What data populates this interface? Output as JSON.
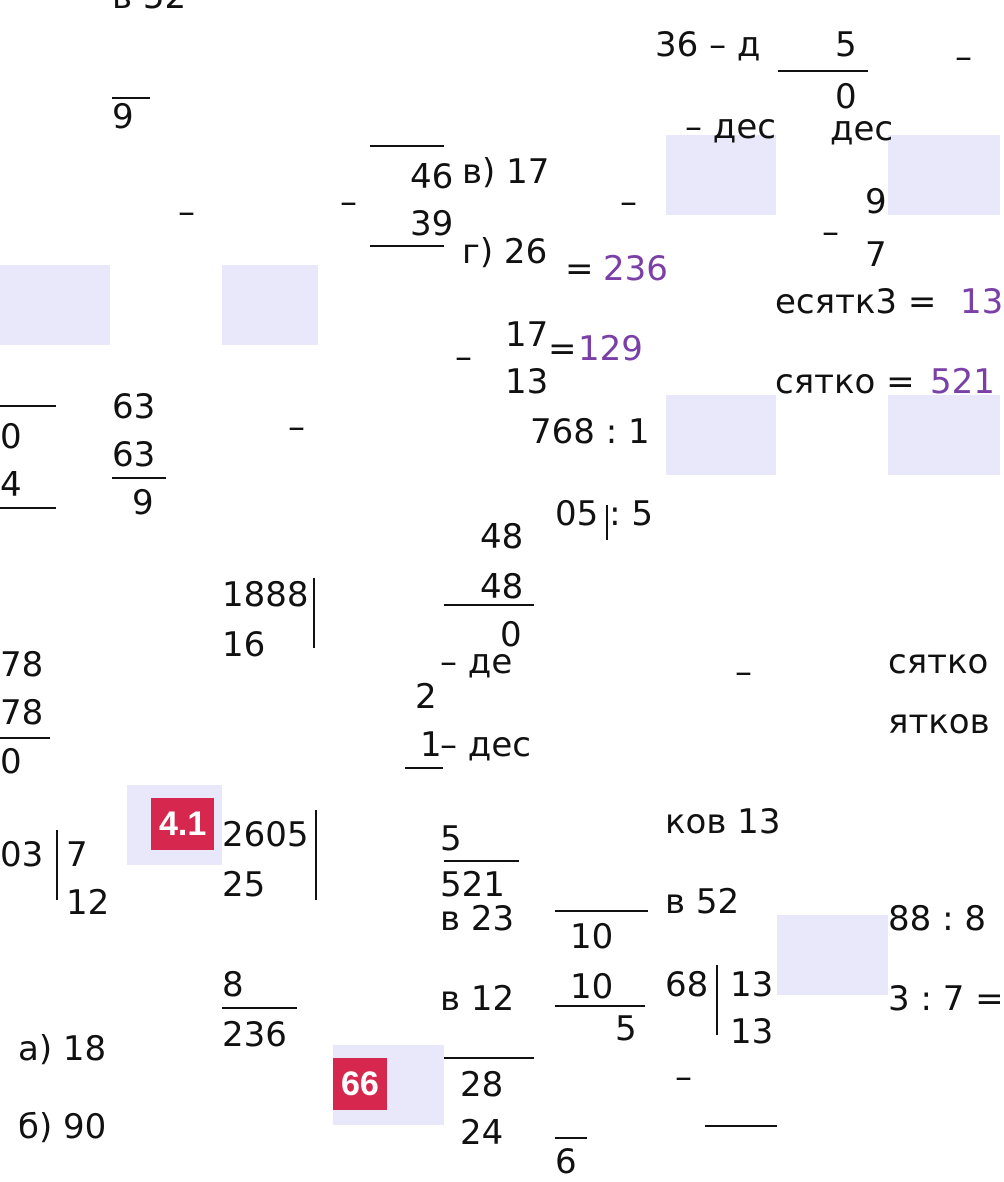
{
  "fragments": [
    {
      "text": "в 52"
    },
    {
      "text": "9"
    },
    {
      "text": "46"
    },
    {
      "text": "в) 17"
    },
    {
      "text": "39"
    },
    {
      "text": "г) 26"
    },
    {
      "text": "–"
    },
    {
      "text": "–"
    },
    {
      "text": "–"
    },
    {
      "text": "–"
    },
    {
      "text": "–"
    },
    {
      "text": "36 – д"
    },
    {
      "text": "5"
    },
    {
      "text": "0"
    },
    {
      "text": "– дес"
    },
    {
      "text": "дес"
    },
    {
      "text": "9"
    },
    {
      "text": "7"
    },
    {
      "text": "="
    },
    {
      "text": "236",
      "color": "#7b3fa8"
    },
    {
      "text": "есятк3 ="
    },
    {
      "text": "13",
      "color": "#7b3fa8"
    },
    {
      "text": "17"
    },
    {
      "text": "="
    },
    {
      "text": "129",
      "color": "#7b3fa8"
    },
    {
      "text": "13"
    },
    {
      "text": "сятко ="
    },
    {
      "text": "521",
      "color": "#7b3fa8"
    },
    {
      "text": "63"
    },
    {
      "text": "63"
    },
    {
      "text": "9"
    },
    {
      "text": "0"
    },
    {
      "text": "4"
    },
    {
      "text": "768 : 1"
    },
    {
      "text": "05 : 5"
    },
    {
      "text": "48"
    },
    {
      "text": "48"
    },
    {
      "text": "0"
    },
    {
      "text": "1888"
    },
    {
      "text": "16"
    },
    {
      "text": "78"
    },
    {
      "text": "78"
    },
    {
      "text": "0"
    },
    {
      "text": "– де"
    },
    {
      "text": "2"
    },
    {
      "text": "1"
    },
    {
      "text": "– дес"
    },
    {
      "text": "сятко"
    },
    {
      "text": "ятков"
    },
    {
      "text": "ков 13"
    },
    {
      "text": "03"
    },
    {
      "text": "7"
    },
    {
      "text": "12"
    },
    {
      "text": "2605"
    },
    {
      "text": "25"
    },
    {
      "text": "5"
    },
    {
      "text": "521"
    },
    {
      "text": "в 23"
    },
    {
      "text": "10"
    },
    {
      "text": "10"
    },
    {
      "text": "5"
    },
    {
      "text": "в 52"
    },
    {
      "text": "88 : 8"
    },
    {
      "text": "3 : 7 ="
    },
    {
      "text": "в 12"
    },
    {
      "text": "68"
    },
    {
      "text": "13"
    },
    {
      "text": "13"
    },
    {
      "text": "8"
    },
    {
      "text": "236"
    },
    {
      "text": "а) 18"
    },
    {
      "text": "б) 90"
    },
    {
      "text": "28"
    },
    {
      "text": "24"
    },
    {
      "text": "–"
    },
    {
      "text": "6"
    },
    {
      "text": "–"
    },
    {
      "text": "–"
    },
    {
      "text": "–"
    }
  ],
  "badges": [
    "4.1",
    "66"
  ]
}
